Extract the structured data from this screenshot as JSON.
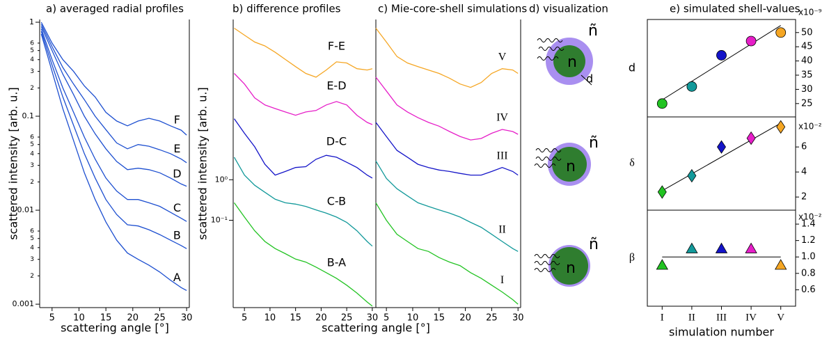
{
  "chart_data": [
    {
      "type": "line",
      "title": "a) averaged radial profiles",
      "xlabel": "scattering angle [°]",
      "ylabel": "scattered intensity [arb. u.]",
      "log_y": true,
      "xlim": [
        2.7,
        30.5
      ],
      "ylim": [
        0.00092,
        1.07
      ],
      "xticks": [
        5,
        10,
        15,
        20,
        25,
        30
      ],
      "yticks": [
        1,
        {
          "value": 0.6,
          "label": "6"
        },
        {
          "value": 0.5,
          "label": "5"
        },
        {
          "value": 0.4,
          "label": "4"
        },
        {
          "value": 0.3,
          "label": "3"
        },
        {
          "value": 0.2,
          "label": "2"
        },
        0.1,
        {
          "value": 0.06,
          "label": "6"
        },
        {
          "value": 0.05,
          "label": "5"
        },
        {
          "value": 0.04,
          "label": "4"
        },
        {
          "value": 0.03,
          "label": "3"
        },
        {
          "value": 0.02,
          "label": "2"
        },
        0.01,
        {
          "value": 0.006,
          "label": "6"
        },
        {
          "value": 0.005,
          "label": "5"
        },
        {
          "value": 0.004,
          "label": "4"
        },
        {
          "value": 0.003,
          "label": "3"
        },
        {
          "value": 0.002,
          "label": "2"
        },
        0.001
      ],
      "x": [
        3,
        5,
        7,
        9,
        11,
        13,
        15,
        17,
        19,
        21,
        23,
        25,
        27,
        29,
        30
      ],
      "series": [
        {
          "name": "A",
          "color": "#1d4fd0",
          "values": [
            0.75,
            0.3,
            0.12,
            0.055,
            0.025,
            0.013,
            0.0075,
            0.0048,
            0.0035,
            0.003,
            0.0026,
            0.0022,
            0.0018,
            0.0015,
            0.0014
          ]
        },
        {
          "name": "B",
          "color": "#1d4fd0",
          "values": [
            0.8,
            0.35,
            0.16,
            0.08,
            0.04,
            0.022,
            0.013,
            0.009,
            0.007,
            0.0068,
            0.0062,
            0.0055,
            0.0048,
            0.0042,
            0.0039
          ]
        },
        {
          "name": "C",
          "color": "#1d4fd0",
          "values": [
            0.85,
            0.4,
            0.2,
            0.11,
            0.06,
            0.035,
            0.022,
            0.016,
            0.013,
            0.013,
            0.012,
            0.011,
            0.0095,
            0.0082,
            0.0076
          ]
        },
        {
          "name": "D",
          "color": "#1d4fd0",
          "values": [
            0.9,
            0.5,
            0.28,
            0.17,
            0.1,
            0.065,
            0.045,
            0.033,
            0.027,
            0.028,
            0.027,
            0.025,
            0.022,
            0.019,
            0.018
          ]
        },
        {
          "name": "E",
          "color": "#1d4fd0",
          "values": [
            0.95,
            0.55,
            0.33,
            0.22,
            0.15,
            0.1,
            0.072,
            0.052,
            0.045,
            0.05,
            0.048,
            0.044,
            0.04,
            0.035,
            0.032
          ]
        },
        {
          "name": "F",
          "color": "#1d4fd0",
          "values": [
            1,
            0.6,
            0.4,
            0.3,
            0.21,
            0.16,
            0.11,
            0.089,
            0.079,
            0.089,
            0.095,
            0.089,
            0.079,
            0.071,
            0.063
          ]
        }
      ]
    },
    {
      "type": "line",
      "title": "b) difference profiles",
      "xlabel": "scattering angle [°]",
      "ylabel": "scattered intensity [arb. u.]",
      "log_y": true,
      "xlim": [
        2.8,
        30.7
      ],
      "ylim": [
        0.0007,
        9000
      ],
      "xticks": [
        5,
        10,
        15,
        20,
        25,
        30
      ],
      "yticks": [
        {
          "value": 1,
          "label": "10⁰"
        },
        {
          "value": 0.1,
          "label": "10⁻¹"
        }
      ],
      "x": [
        3,
        5,
        7,
        9,
        11,
        13,
        15,
        17,
        19,
        21,
        23,
        25,
        27,
        29,
        30
      ],
      "series": [
        {
          "name": "F-E",
          "color": "#f5a623",
          "values": [
            5500,
            3700,
            2500,
            2000,
            1400,
            930,
            620,
            420,
            340,
            510,
            810,
            760,
            550,
            510,
            550
          ]
        },
        {
          "name": "E-D",
          "color": "#e61ec8",
          "values": [
            420,
            230,
            105,
            70,
            57,
            47,
            39,
            47,
            51,
            70,
            85,
            70,
            39,
            26,
            23
          ]
        },
        {
          "name": "D-C",
          "color": "#1414c8",
          "values": [
            32,
            14,
            6.5,
            2.4,
            1.3,
            1.6,
            2.0,
            2.1,
            3.2,
            4.0,
            3.6,
            2.7,
            2.0,
            1.3,
            1.1
          ]
        },
        {
          "name": "C-B",
          "color": "#12999a",
          "values": [
            3.6,
            1.3,
            0.73,
            0.49,
            0.33,
            0.27,
            0.25,
            0.22,
            0.18,
            0.15,
            0.12,
            0.089,
            0.055,
            0.03,
            0.023
          ]
        },
        {
          "name": "B-A",
          "color": "#22c322",
          "values": [
            0.27,
            0.12,
            0.055,
            0.03,
            0.02,
            0.015,
            0.011,
            0.0093,
            0.007,
            0.0051,
            0.0037,
            0.0025,
            0.0016,
            0.00096,
            0.00076
          ]
        }
      ]
    },
    {
      "type": "line",
      "title": "c) Mie-core-shell simulations",
      "log_y": true,
      "xlim": [
        3,
        30.5
      ],
      "ylim": [
        0.0007,
        9000
      ],
      "xticks": [
        5,
        10,
        15,
        20,
        25,
        30
      ],
      "x": [
        3,
        5,
        7,
        9,
        11,
        13,
        15,
        17,
        19,
        21,
        23,
        25,
        27,
        29,
        30
      ],
      "series": [
        {
          "name": "V",
          "color": "#f5a623",
          "values": [
            5500,
            2500,
            1100,
            760,
            620,
            510,
            420,
            320,
            230,
            190,
            250,
            420,
            550,
            510,
            420
          ]
        },
        {
          "name": "IV",
          "color": "#e61ec8",
          "values": [
            340,
            155,
            70,
            47,
            34,
            26,
            21,
            15.5,
            11.7,
            9.6,
            10.4,
            14,
            17.4,
            15.5,
            13.2
          ]
        },
        {
          "name": "III",
          "color": "#1414c8",
          "values": [
            26,
            11.7,
            5.3,
            3.6,
            2.4,
            2.0,
            1.74,
            1.6,
            1.43,
            1.3,
            1.3,
            1.6,
            2.0,
            1.6,
            1.3
          ]
        },
        {
          "name": "II",
          "color": "#12999a",
          "values": [
            2.9,
            1.08,
            0.6,
            0.4,
            0.27,
            0.22,
            0.18,
            0.15,
            0.12,
            0.089,
            0.067,
            0.045,
            0.03,
            0.02,
            0.017
          ]
        },
        {
          "name": "I",
          "color": "#22c322",
          "values": [
            0.27,
            0.1,
            0.045,
            0.03,
            0.02,
            0.017,
            0.012,
            0.0093,
            0.0076,
            0.0051,
            0.0037,
            0.0025,
            0.0017,
            0.0011,
            0.00085
          ]
        }
      ]
    },
    {
      "type": "scatter",
      "title": "e) simulated shell-values",
      "ylabel": "d",
      "multiplier": "x10⁻⁹",
      "marker": "circle",
      "ylim": [
        20.3,
        54.6
      ],
      "yticks": [
        25,
        30,
        35,
        40,
        45,
        50
      ],
      "values": [
        25,
        31,
        42,
        47,
        50
      ],
      "colors": [
        "#22c322",
        "#12999a",
        "#1414c8",
        "#e61ec8",
        "#f5a623"
      ],
      "fit": [
        26.3,
        52.5
      ]
    },
    {
      "type": "scatter",
      "ylabel": "δ",
      "multiplier": "x10⁻²",
      "marker": "diamond",
      "ylim": [
        0.95,
        8.4
      ],
      "yticks": [
        2,
        4,
        6
      ],
      "values": [
        2.4,
        3.7,
        6.0,
        6.7,
        7.6
      ],
      "colors": [
        "#22c322",
        "#12999a",
        "#1414c8",
        "#e61ec8",
        "#f5a623"
      ],
      "fit": [
        2.5,
        7.9
      ]
    },
    {
      "type": "scatter",
      "ylabel": "β",
      "multiplier": "x10⁻²",
      "marker": "triangle",
      "xlabel": "simulation number",
      "ylim": [
        0.4,
        1.57
      ],
      "yticks": [
        0.6,
        0.8,
        {
          "value": 1,
          "label": "1.0"
        },
        1.2,
        1.4
      ],
      "categories": [
        "I",
        "II",
        "III",
        "IV",
        "V"
      ],
      "values": [
        0.9,
        1.1,
        1.1,
        1.1,
        0.9
      ],
      "colors": [
        "#22c322",
        "#12999a",
        "#1414c8",
        "#e61ec8",
        "#f5a623"
      ],
      "fit": [
        1,
        1
      ]
    }
  ],
  "visualization": {
    "title": "d) visualization",
    "items": [
      {
        "core": "n",
        "shell": "ñ",
        "thickness": "d"
      },
      {
        "core": "n",
        "shell": "ñ"
      },
      {
        "core": "n",
        "shell": "ñ"
      }
    ]
  }
}
